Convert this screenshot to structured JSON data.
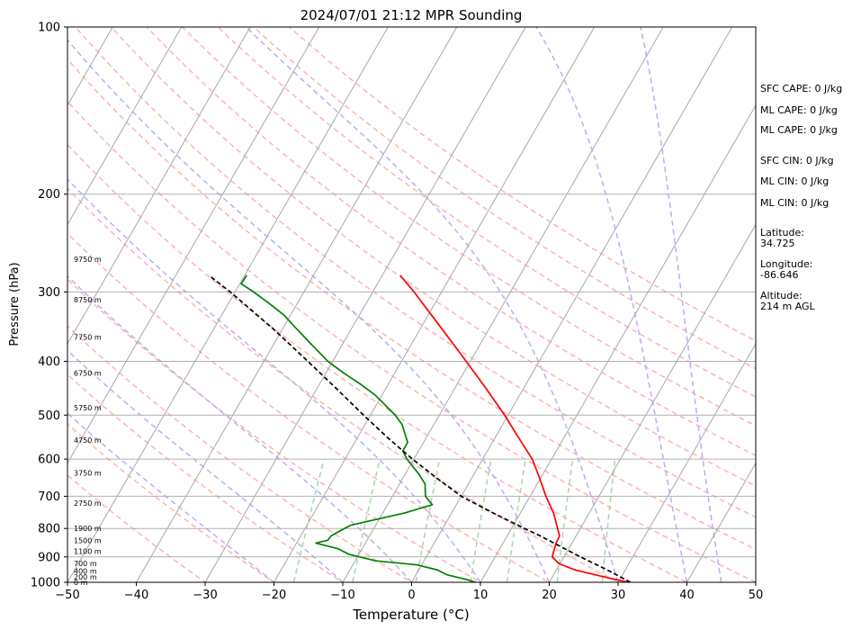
{
  "chart_data": {
    "type": "line",
    "title": "2024/07/01 21:12 MPR Sounding",
    "xlabel": "Temperature (°C)",
    "ylabel": "Pressure (hPa)",
    "xlim": [
      -50,
      50
    ],
    "ylim": [
      1000,
      100
    ],
    "y_scale": "log",
    "skew": true,
    "grid": true,
    "x_ticks": [
      -50,
      -40,
      -30,
      -20,
      -10,
      0,
      10,
      20,
      30,
      40,
      50
    ],
    "y_ticks": [
      1000,
      900,
      800,
      700,
      600,
      500,
      400,
      300,
      200,
      100
    ],
    "series": [
      {
        "role": "temperature",
        "color": "#ff0000",
        "points": [
          [
            1000,
            31.5
          ],
          [
            975,
            27.0
          ],
          [
            950,
            22.7
          ],
          [
            925,
            19.8
          ],
          [
            900,
            18.3
          ],
          [
            850,
            17.7
          ],
          [
            825,
            17.6
          ],
          [
            800,
            16.7
          ],
          [
            750,
            14.8
          ],
          [
            700,
            12.3
          ],
          [
            650,
            9.9
          ],
          [
            600,
            7.2
          ],
          [
            550,
            3.5
          ],
          [
            500,
            -0.5
          ],
          [
            450,
            -5.2
          ],
          [
            400,
            -10.6
          ],
          [
            350,
            -16.8
          ],
          [
            300,
            -24.0
          ],
          [
            280,
            -27.4
          ]
        ]
      },
      {
        "role": "dewpoint",
        "color": "#008000",
        "points": [
          [
            1000,
            9.3
          ],
          [
            990,
            8.0
          ],
          [
            970,
            4.6
          ],
          [
            950,
            2.7
          ],
          [
            930,
            -0.7
          ],
          [
            915,
            -7.0
          ],
          [
            890,
            -11.5
          ],
          [
            870,
            -13.5
          ],
          [
            850,
            -17.2
          ],
          [
            840,
            -15.7
          ],
          [
            825,
            -15.6
          ],
          [
            810,
            -14.8
          ],
          [
            790,
            -13.7
          ],
          [
            775,
            -11.2
          ],
          [
            750,
            -6.8
          ],
          [
            725,
            -3.5
          ],
          [
            700,
            -5.2
          ],
          [
            665,
            -6.3
          ],
          [
            640,
            -7.9
          ],
          [
            600,
            -11.0
          ],
          [
            580,
            -12.3
          ],
          [
            560,
            -12.3
          ],
          [
            520,
            -14.6
          ],
          [
            500,
            -16.4
          ],
          [
            460,
            -21.0
          ],
          [
            440,
            -24.0
          ],
          [
            420,
            -27.4
          ],
          [
            400,
            -30.7
          ],
          [
            375,
            -34.2
          ],
          [
            350,
            -37.9
          ],
          [
            330,
            -41.0
          ],
          [
            315,
            -44.0
          ],
          [
            300,
            -47.3
          ],
          [
            290,
            -49.8
          ],
          [
            280,
            -49.7
          ]
        ]
      },
      {
        "role": "parcel",
        "color": "#000000",
        "style": "dashed",
        "points": [
          [
            1000,
            31.8
          ],
          [
            950,
            27.4
          ],
          [
            900,
            22.4
          ],
          [
            850,
            17.4
          ],
          [
            825,
            14.8
          ],
          [
            800,
            11.9
          ],
          [
            750,
            6.0
          ],
          [
            700,
            0.0
          ],
          [
            650,
            -5.0
          ],
          [
            600,
            -10.2
          ],
          [
            550,
            -15.5
          ],
          [
            500,
            -21.0
          ],
          [
            450,
            -26.9
          ],
          [
            400,
            -33.6
          ],
          [
            350,
            -41.3
          ],
          [
            300,
            -50.7
          ],
          [
            280,
            -55.2
          ]
        ]
      }
    ],
    "height_labels": [
      "0 m",
      "200 m",
      "400 m",
      "700 m",
      "1100 m",
      "1500 m",
      "1900 m",
      "2750 m",
      "3750 m",
      "4750 m",
      "5750 m",
      "6750 m",
      "7750 m",
      "8750 m",
      "9750 m"
    ],
    "height_label_pressures": [
      1000,
      977,
      955,
      925,
      880,
      840,
      800,
      720,
      635,
      555,
      485,
      420,
      362,
      310,
      262
    ],
    "info": {
      "sfc_cape": "SFC CAPE: 0 J/kg",
      "ml_cape_1": "ML CAPE: 0 J/kg",
      "ml_cape_2": "ML CAPE: 0 J/kg",
      "sfc_cin": "SFC CIN: 0 J/kg",
      "ml_cin_1": "ML CIN: 0 J/kg",
      "ml_cin_2": "ML CIN: 0 J/kg",
      "latitude_label": "Latitude:",
      "latitude_value": "34.725",
      "longitude_label": "Longitude:",
      "longitude_value": "-86.646",
      "altitude_label": "Altitude:",
      "altitude_value": "214 m AGL"
    },
    "background": {
      "isotherms": [
        -150,
        -140,
        -130,
        -120,
        -110,
        -100,
        -90,
        -80,
        -70,
        -60,
        -50,
        -40,
        -30,
        -20,
        -10,
        0,
        10,
        20,
        30,
        40,
        50
      ],
      "dry_adiabats": [
        -30,
        -20,
        -10,
        0,
        10,
        20,
        30,
        40,
        50,
        60,
        70,
        80,
        90,
        100,
        110,
        120,
        130
      ],
      "moist_adiabats": [
        -20,
        -10,
        0,
        10,
        20,
        30,
        40,
        45
      ],
      "mixing_ratios": [
        1,
        2,
        4,
        7,
        10,
        16,
        24
      ],
      "colors": {
        "isotherm": "#a8a8a8",
        "dry_adiabat": "#ffb3b3",
        "moist_adiabat": "#b8b0f0",
        "mixing_ratio": "#a8d8a8",
        "grid": "#b0b0b0"
      }
    }
  }
}
